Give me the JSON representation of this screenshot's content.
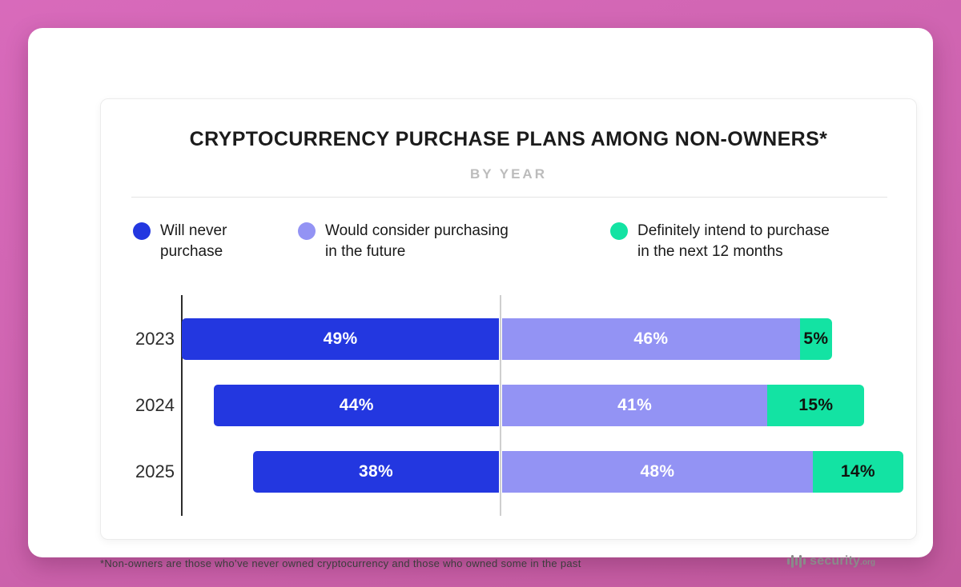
{
  "header": {
    "title": "CRYPTOCURRENCY PURCHASE PLANS AMONG NON-OWNERS*",
    "subtitle": "BY YEAR"
  },
  "legend": {
    "items": [
      {
        "label": "Will never\npurchase",
        "color": "#2337e0"
      },
      {
        "label": "Would consider purchasing\nin the future",
        "color": "#9393f4"
      },
      {
        "label": "Definitely intend to purchase\nin the next 12 months",
        "color": "#13e3a3"
      }
    ]
  },
  "chart_data": {
    "type": "bar",
    "variant": "horizontal-diverging-stacked",
    "title": "CRYPTOCURRENCY PURCHASE PLANS AMONG NON-OWNERS*",
    "subtitle": "BY YEAR",
    "categories": [
      "2023",
      "2024",
      "2025"
    ],
    "series": [
      {
        "name": "Will never purchase",
        "color": "#2337e0",
        "label_color": "#ffffff",
        "values": [
          49,
          44,
          38
        ]
      },
      {
        "name": "Would consider purchasing in the future",
        "color": "#9393f4",
        "label_color": "#ffffff",
        "values": [
          46,
          41,
          48
        ]
      },
      {
        "name": "Definitely intend to purchase in the next 12 months",
        "color": "#13e3a3",
        "label_color": "#10140f",
        "values": [
          5,
          15,
          14
        ]
      }
    ],
    "value_suffix": "%",
    "row_totals": [
      100,
      100,
      100
    ],
    "xlim": [
      0,
      100
    ],
    "legend_position": "top",
    "grid": "single vertical divider line at the boundary between series 1 and series 2; solid dark y-axis line at left"
  },
  "colors": {
    "background_pink": "#cd63ae",
    "axis": "#2c2c2c",
    "gridline": "#cfcfcf"
  },
  "footer": {
    "note": "*Non-owners are those who’ve never owned cryptocurrency and those who owned some in the past",
    "brand_name": "security",
    "brand_tld": ".org"
  }
}
